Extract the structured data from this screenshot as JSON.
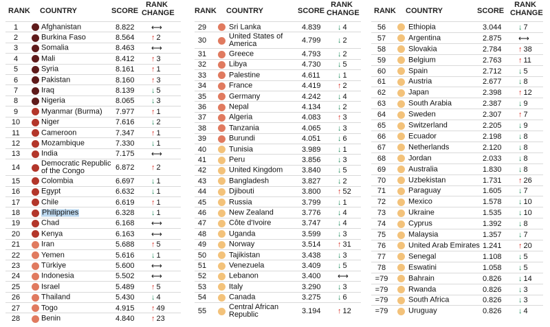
{
  "headers": {
    "rank": "RANK",
    "country": "COUNTRY",
    "score": "SCORE",
    "change_1": "RANK",
    "change_2": "CHANGE"
  },
  "colors": {
    "very_high": "#6b1f1f",
    "high": "#a8342a",
    "elevated": "#e0725a",
    "moderate": "#f3b66e",
    "low": "#f7d28a"
  },
  "columns": [
    [
      {
        "rank": "1",
        "country": "Afghanistan",
        "score": "8.822",
        "dir": "flat",
        "change": "",
        "color": "#5e1a1a"
      },
      {
        "rank": "2",
        "country": "Burkina Faso",
        "score": "8.564",
        "dir": "up",
        "change": "2",
        "color": "#5e1a1a"
      },
      {
        "rank": "3",
        "country": "Somalia",
        "score": "8.463",
        "dir": "flat",
        "change": "",
        "color": "#5e1a1a"
      },
      {
        "rank": "4",
        "country": "Mali",
        "score": "8.412",
        "dir": "up",
        "change": "3",
        "color": "#5e1a1a"
      },
      {
        "rank": "5",
        "country": "Syria",
        "score": "8.161",
        "dir": "up",
        "change": "1",
        "color": "#5e1a1a"
      },
      {
        "rank": "6",
        "country": "Pakistan",
        "score": "8.160",
        "dir": "up",
        "change": "3",
        "color": "#5e1a1a"
      },
      {
        "rank": "7",
        "country": "Iraq",
        "score": "8.139",
        "dir": "down",
        "change": "5",
        "color": "#5e1a1a"
      },
      {
        "rank": "8",
        "country": "Nigeria",
        "score": "8.065",
        "dir": "down",
        "change": "3",
        "color": "#5e1a1a"
      },
      {
        "rank": "9",
        "country": "Myanmar (Burma)",
        "score": "7.977",
        "dir": "up",
        "change": "1",
        "color": "#b3362a"
      },
      {
        "rank": "10",
        "country": "Niger",
        "score": "7.616",
        "dir": "down",
        "change": "2",
        "color": "#b3362a"
      },
      {
        "rank": "11",
        "country": "Cameroon",
        "score": "7.347",
        "dir": "up",
        "change": "1",
        "color": "#b3362a"
      },
      {
        "rank": "12",
        "country": "Mozambique",
        "score": "7.330",
        "dir": "down",
        "change": "1",
        "color": "#b3362a"
      },
      {
        "rank": "13",
        "country": "India",
        "score": "7.175",
        "dir": "flat",
        "change": "",
        "color": "#b3362a"
      },
      {
        "rank": "14",
        "country": "Democratic Republic of the Congo",
        "score": "6.872",
        "dir": "up",
        "change": "2",
        "color": "#b3362a",
        "tall": true
      },
      {
        "rank": "15",
        "country": "Colombia",
        "score": "6.697",
        "dir": "down",
        "change": "1",
        "color": "#b3362a"
      },
      {
        "rank": "16",
        "country": "Egypt",
        "score": "6.632",
        "dir": "down",
        "change": "1",
        "color": "#b3362a"
      },
      {
        "rank": "17",
        "country": "Chile",
        "score": "6.619",
        "dir": "up",
        "change": "1",
        "color": "#b3362a"
      },
      {
        "rank": "18",
        "country": "Philippines",
        "score": "6.328",
        "dir": "down",
        "change": "1",
        "color": "#b3362a",
        "highlight": true
      },
      {
        "rank": "19",
        "country": "Chad",
        "score": "6.168",
        "dir": "flat",
        "change": "",
        "color": "#b3362a"
      },
      {
        "rank": "20",
        "country": "Kenya",
        "score": "6.163",
        "dir": "flat",
        "change": "",
        "color": "#b3362a"
      },
      {
        "rank": "21",
        "country": "Iran",
        "score": "5.688",
        "dir": "up",
        "change": "5",
        "color": "#e07a5f"
      },
      {
        "rank": "22",
        "country": "Yemen",
        "score": "5.616",
        "dir": "down",
        "change": "1",
        "color": "#e07a5f"
      },
      {
        "rank": "23",
        "country": "Türkiye",
        "score": "5.600",
        "dir": "flat",
        "change": "",
        "color": "#e07a5f"
      },
      {
        "rank": "24",
        "country": "Indonesia",
        "score": "5.502",
        "dir": "flat",
        "change": "",
        "color": "#e07a5f"
      },
      {
        "rank": "25",
        "country": "Israel",
        "score": "5.489",
        "dir": "up",
        "change": "5",
        "color": "#e07a5f"
      },
      {
        "rank": "26",
        "country": "Thailand",
        "score": "5.430",
        "dir": "down",
        "change": "4",
        "color": "#e07a5f"
      },
      {
        "rank": "27",
        "country": "Togo",
        "score": "4.915",
        "dir": "up",
        "change": "49",
        "color": "#e07a5f"
      },
      {
        "rank": "28",
        "country": "Benin",
        "score": "4.840",
        "dir": "up",
        "change": "23",
        "color": "#e07a5f"
      }
    ],
    [
      {
        "rank": "29",
        "country": "Sri Lanka",
        "score": "4.839",
        "dir": "down",
        "change": "4",
        "color": "#e07a5f"
      },
      {
        "rank": "30",
        "country": "United States of America",
        "score": "4.799",
        "dir": "down",
        "change": "2",
        "color": "#e07a5f",
        "tall": true
      },
      {
        "rank": "31",
        "country": "Greece",
        "score": "4.793",
        "dir": "down",
        "change": "2",
        "color": "#e07a5f"
      },
      {
        "rank": "32",
        "country": "Libya",
        "score": "4.730",
        "dir": "down",
        "change": "5",
        "color": "#e07a5f"
      },
      {
        "rank": "33",
        "country": "Palestine",
        "score": "4.611",
        "dir": "down",
        "change": "1",
        "color": "#e07a5f"
      },
      {
        "rank": "34",
        "country": "France",
        "score": "4.419",
        "dir": "up",
        "change": "2",
        "color": "#e07a5f"
      },
      {
        "rank": "35",
        "country": "Germany",
        "score": "4.242",
        "dir": "down",
        "change": "4",
        "color": "#e07a5f"
      },
      {
        "rank": "36",
        "country": "Nepal",
        "score": "4.134",
        "dir": "down",
        "change": "2",
        "color": "#e07a5f"
      },
      {
        "rank": "37",
        "country": "Algeria",
        "score": "4.083",
        "dir": "up",
        "change": "3",
        "color": "#e07a5f"
      },
      {
        "rank": "38",
        "country": "Tanzania",
        "score": "4.065",
        "dir": "down",
        "change": "3",
        "color": "#e07a5f"
      },
      {
        "rank": "39",
        "country": "Burundi",
        "score": "4.051",
        "dir": "down",
        "change": "6",
        "color": "#e07a5f"
      },
      {
        "rank": "40",
        "country": "Tunisia",
        "score": "3.989",
        "dir": "down",
        "change": "1",
        "color": "#f3c27a"
      },
      {
        "rank": "41",
        "country": "Peru",
        "score": "3.856",
        "dir": "down",
        "change": "3",
        "color": "#f3c27a"
      },
      {
        "rank": "42",
        "country": "United Kingdom",
        "score": "3.840",
        "dir": "down",
        "change": "5",
        "color": "#f3c27a"
      },
      {
        "rank": "43",
        "country": "Bangladesh",
        "score": "3.827",
        "dir": "down",
        "change": "2",
        "color": "#f3c27a"
      },
      {
        "rank": "44",
        "country": "Djibouti",
        "score": "3.800",
        "dir": "up",
        "change": "52",
        "color": "#f3c27a"
      },
      {
        "rank": "45",
        "country": "Russia",
        "score": "3.799",
        "dir": "down",
        "change": "1",
        "color": "#f3c27a"
      },
      {
        "rank": "46",
        "country": "New Zealand",
        "score": "3.776",
        "dir": "down",
        "change": "4",
        "color": "#f3c27a"
      },
      {
        "rank": "47",
        "country": "Côte d'Ivoire",
        "score": "3.747",
        "dir": "down",
        "change": "4",
        "color": "#f3c27a"
      },
      {
        "rank": "48",
        "country": "Uganda",
        "score": "3.599",
        "dir": "down",
        "change": "3",
        "color": "#f3c27a"
      },
      {
        "rank": "49",
        "country": "Norway",
        "score": "3.514",
        "dir": "up",
        "change": "31",
        "color": "#f3c27a"
      },
      {
        "rank": "50",
        "country": "Tajikistan",
        "score": "3.438",
        "dir": "down",
        "change": "3",
        "color": "#f3c27a"
      },
      {
        "rank": "51",
        "country": "Venezuela",
        "score": "3.409",
        "dir": "down",
        "change": "5",
        "color": "#f3c27a"
      },
      {
        "rank": "52",
        "country": "Lebanon",
        "score": "3.400",
        "dir": "flat",
        "change": "",
        "color": "#f3c27a"
      },
      {
        "rank": "53",
        "country": "Italy",
        "score": "3.290",
        "dir": "down",
        "change": "3",
        "color": "#f3c27a"
      },
      {
        "rank": "54",
        "country": "Canada",
        "score": "3.275",
        "dir": "down",
        "change": "6",
        "color": "#f3c27a"
      },
      {
        "rank": "55",
        "country": "Central African Republic",
        "score": "3.194",
        "dir": "up",
        "change": "12",
        "color": "#f3c27a",
        "tall": true
      }
    ],
    [
      {
        "rank": "56",
        "country": "Ethiopia",
        "score": "3.044",
        "dir": "down",
        "change": "7",
        "color": "#f3c27a"
      },
      {
        "rank": "57",
        "country": "Argentina",
        "score": "2.875",
        "dir": "flat",
        "change": "",
        "color": "#f3c27a"
      },
      {
        "rank": "58",
        "country": "Slovakia",
        "score": "2.784",
        "dir": "up",
        "change": "38",
        "color": "#f3c27a"
      },
      {
        "rank": "59",
        "country": "Belgium",
        "score": "2.763",
        "dir": "up",
        "change": "11",
        "color": "#f3c27a"
      },
      {
        "rank": "60",
        "country": "Spain",
        "score": "2.712",
        "dir": "down",
        "change": "5",
        "color": "#f3c27a"
      },
      {
        "rank": "61",
        "country": "Austria",
        "score": "2.677",
        "dir": "down",
        "change": "8",
        "color": "#f3c27a"
      },
      {
        "rank": "62",
        "country": "Japan",
        "score": "2.398",
        "dir": "up",
        "change": "12",
        "color": "#f3c27a"
      },
      {
        "rank": "63",
        "country": "South Arabia",
        "score": "2.387",
        "dir": "down",
        "change": "9",
        "color": "#f3c27a"
      },
      {
        "rank": "64",
        "country": "Sweden",
        "score": "2.307",
        "dir": "up",
        "change": "7",
        "color": "#f3c27a"
      },
      {
        "rank": "65",
        "country": "Switzerland",
        "score": "2.205",
        "dir": "down",
        "change": "9",
        "color": "#f3c27a"
      },
      {
        "rank": "66",
        "country": "Ecuador",
        "score": "2.198",
        "dir": "down",
        "change": "8",
        "color": "#f3c27a"
      },
      {
        "rank": "67",
        "country": "Netherlands",
        "score": "2.120",
        "dir": "down",
        "change": "8",
        "color": "#f3c27a"
      },
      {
        "rank": "68",
        "country": "Jordan",
        "score": "2.033",
        "dir": "down",
        "change": "8",
        "color": "#f3c27a"
      },
      {
        "rank": "69",
        "country": "Australia",
        "score": "1.830",
        "dir": "down",
        "change": "8",
        "color": "#f3c27a"
      },
      {
        "rank": "70",
        "country": "Uzbekistan",
        "score": "1.731",
        "dir": "up",
        "change": "26",
        "color": "#f3c27a"
      },
      {
        "rank": "71",
        "country": "Paraguay",
        "score": "1.605",
        "dir": "down",
        "change": "7",
        "color": "#f3c27a"
      },
      {
        "rank": "72",
        "country": "Mexico",
        "score": "1.578",
        "dir": "down",
        "change": "10",
        "color": "#f3c27a"
      },
      {
        "rank": "73",
        "country": "Ukraine",
        "score": "1.535",
        "dir": "down",
        "change": "10",
        "color": "#f3c27a"
      },
      {
        "rank": "74",
        "country": "Cyprus",
        "score": "1.392",
        "dir": "down",
        "change": "8",
        "color": "#f3c27a"
      },
      {
        "rank": "75",
        "country": "Malaysia",
        "score": "1.357",
        "dir": "down",
        "change": "7",
        "color": "#f3c27a"
      },
      {
        "rank": "76",
        "country": "United Arab Emirates",
        "score": "1.241",
        "dir": "up",
        "change": "20",
        "color": "#f3c27a"
      },
      {
        "rank": "77",
        "country": "Senegal",
        "score": "1.108",
        "dse": "",
        "dir": "down",
        "change": "5",
        "color": "#f3c27a"
      },
      {
        "rank": "78",
        "country": "Eswatini",
        "score": "1.058",
        "dir": "down",
        "change": "5",
        "color": "#f3c27a"
      },
      {
        "rank": "=79",
        "country": "Bahrain",
        "score": "0.826",
        "dir": "down",
        "change": "14",
        "color": "#f3c27a"
      },
      {
        "rank": "=79",
        "country": "Rwanda",
        "score": "0.826",
        "dir": "down",
        "change": "3",
        "color": "#f3c27a"
      },
      {
        "rank": "=79",
        "country": "South Africa",
        "score": "0.826",
        "dir": "down",
        "change": "3",
        "color": "#f3c27a"
      },
      {
        "rank": "=79",
        "country": "Uruguay",
        "score": "0.826",
        "dir": "down",
        "change": "4",
        "color": "#f3c27a"
      }
    ]
  ]
}
